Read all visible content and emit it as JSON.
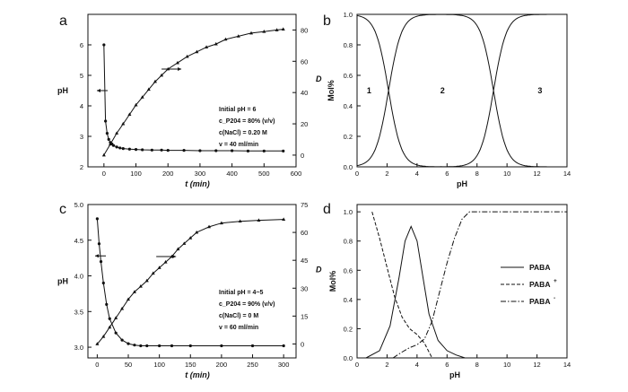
{
  "chart_data": [
    {
      "panel_letter": "a",
      "type": "line",
      "xlabel": "t (min)",
      "ylabel": "pH",
      "y2label": "D",
      "xlim": [
        -50,
        600
      ],
      "ylim": [
        2,
        7
      ],
      "y2lim": [
        -7.5,
        90
      ],
      "xticks": [
        0,
        100,
        200,
        300,
        400,
        500,
        600
      ],
      "yticks": [
        2,
        3,
        4,
        5,
        6
      ],
      "y2ticks": [
        0,
        20,
        40,
        60,
        80
      ],
      "annotation_lines": [
        "Initial pH = 6",
        "c_P204 = 80% (v/v)",
        "c(NaCl) = 0.20 M",
        "v = 40 ml/min"
      ],
      "series": [
        {
          "axis": "left",
          "marker": "circle",
          "x": [
            0,
            5,
            10,
            15,
            20,
            25,
            30,
            40,
            50,
            60,
            80,
            100,
            120,
            150,
            180,
            200,
            250,
            300,
            350,
            400,
            450,
            500,
            560
          ],
          "y": [
            6.0,
            3.5,
            3.1,
            2.9,
            2.8,
            2.75,
            2.7,
            2.65,
            2.62,
            2.6,
            2.58,
            2.57,
            2.56,
            2.55,
            2.55,
            2.54,
            2.54,
            2.53,
            2.53,
            2.53,
            2.52,
            2.52,
            2.52
          ]
        },
        {
          "axis": "right",
          "marker": "triangle",
          "x": [
            0,
            20,
            40,
            60,
            80,
            100,
            120,
            140,
            160,
            180,
            200,
            230,
            260,
            290,
            320,
            350,
            380,
            420,
            460,
            500,
            540,
            560
          ],
          "y": [
            0,
            7,
            14,
            20,
            26,
            32,
            37,
            42,
            47,
            51,
            55,
            59,
            63,
            66,
            69,
            71,
            74,
            76,
            78,
            79,
            80,
            80.5
          ]
        }
      ]
    },
    {
      "panel_letter": "b",
      "type": "line",
      "xlabel": "pH",
      "ylabel": "Mol%",
      "xlim": [
        0,
        14
      ],
      "ylim": [
        0,
        1.0
      ],
      "xticks": [
        0,
        2,
        4,
        6,
        8,
        10,
        12,
        14
      ],
      "yticks": [
        0.0,
        0.2,
        0.4,
        0.6,
        0.8,
        1.0
      ],
      "region_labels": [
        "1",
        "2",
        "3"
      ],
      "region_label_x": [
        0.8,
        5.7,
        12.2
      ],
      "region_label_y": 0.5,
      "series": [
        {
          "pKa": 2.1,
          "kind": "decreasing"
        },
        {
          "pKa1": 2.1,
          "pKa2": 9.1,
          "kind": "middle"
        },
        {
          "pKa": 9.1,
          "kind": "increasing"
        }
      ]
    },
    {
      "panel_letter": "c",
      "type": "line",
      "xlabel": "t (min)",
      "ylabel": "pH",
      "y2label": "D",
      "xlim": [
        -15,
        320
      ],
      "ylim": [
        2.85,
        5.0
      ],
      "y2lim": [
        -7.5,
        75
      ],
      "xticks": [
        0,
        50,
        100,
        150,
        200,
        250,
        300
      ],
      "yticks": [
        3.0,
        3.5,
        4.0,
        4.5,
        5.0
      ],
      "y2ticks": [
        0,
        15,
        30,
        45,
        60,
        75
      ],
      "annotation_lines": [
        "Initial pH = 4~5",
        "c_P204 = 90% (v/v)",
        "c(NaCl) = 0 M",
        "v = 60 ml/min"
      ],
      "series": [
        {
          "axis": "left",
          "marker": "circle",
          "x": [
            0,
            3,
            6,
            10,
            15,
            20,
            30,
            40,
            50,
            60,
            70,
            80,
            100,
            120,
            150,
            200,
            250,
            300
          ],
          "y": [
            4.8,
            4.45,
            4.2,
            3.9,
            3.6,
            3.4,
            3.2,
            3.1,
            3.05,
            3.03,
            3.02,
            3.02,
            3.02,
            3.02,
            3.02,
            3.02,
            3.02,
            3.02
          ],
          "legend": ""
        },
        {
          "axis": "right",
          "marker": "triangle",
          "x": [
            0,
            10,
            20,
            30,
            40,
            50,
            60,
            70,
            80,
            90,
            100,
            110,
            120,
            130,
            140,
            150,
            160,
            180,
            200,
            230,
            260,
            300
          ],
          "y": [
            0,
            4,
            9,
            14,
            19,
            24,
            28,
            31,
            34,
            38,
            41,
            44,
            47,
            51,
            54,
            57,
            60,
            63,
            65,
            66,
            66.5,
            67
          ]
        }
      ]
    },
    {
      "panel_letter": "d",
      "type": "line",
      "xlabel": "pH",
      "ylabel": "Mol%",
      "xlim": [
        0,
        14
      ],
      "ylim": [
        0,
        1.05
      ],
      "xticks": [
        0,
        2,
        4,
        6,
        8,
        10,
        12,
        14
      ],
      "yticks": [
        0.0,
        0.2,
        0.4,
        0.6,
        0.8,
        1.0
      ],
      "series": [
        {
          "name": "PABA",
          "style": "solid",
          "x": [
            0.6,
            1.5,
            2.2,
            2.8,
            3.2,
            3.6,
            4.0,
            4.4,
            4.8,
            5.4,
            6.0,
            6.6,
            7.2
          ],
          "y": [
            0.0,
            0.05,
            0.22,
            0.55,
            0.8,
            0.9,
            0.8,
            0.55,
            0.3,
            0.12,
            0.05,
            0.02,
            0.0
          ]
        },
        {
          "name": "PABA+",
          "style": "dashed",
          "x": [
            1.0,
            1.5,
            2.0,
            2.5,
            3.0,
            3.5,
            4.0,
            4.5,
            5.0
          ],
          "y": [
            1.0,
            0.82,
            0.62,
            0.42,
            0.28,
            0.2,
            0.16,
            0.1,
            0.0
          ]
        },
        {
          "name": "PABA-",
          "style": "dashdot",
          "x": [
            2.4,
            3.0,
            3.5,
            4.0,
            4.5,
            5.0,
            5.5,
            6.0,
            6.5,
            7.0,
            7.5,
            8.0,
            10,
            12,
            14
          ],
          "y": [
            0.0,
            0.04,
            0.07,
            0.09,
            0.13,
            0.25,
            0.45,
            0.65,
            0.82,
            0.95,
            1.0,
            1.0,
            1.0,
            1.0,
            1.0
          ]
        }
      ],
      "legend_labels": [
        "PABA",
        "PABA",
        "PABA"
      ],
      "legend_superscripts": [
        "",
        "+",
        "-"
      ]
    }
  ]
}
